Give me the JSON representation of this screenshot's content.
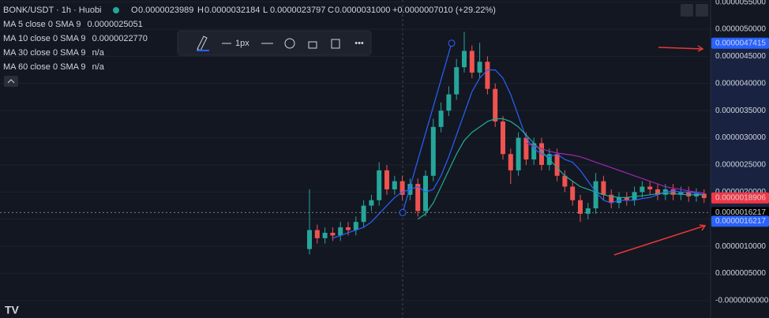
{
  "chart_data": {
    "type": "candlestick",
    "title": "BONK/USDT · 1h · Huobi",
    "ohlc_legend": [
      {
        "label": "O",
        "value": "0.0000023989"
      },
      {
        "label": "H",
        "value": "0.0000032184"
      },
      {
        "label": "L",
        "value": "0.0000023797"
      },
      {
        "label": "C",
        "value": "0.0000031000"
      }
    ],
    "change": "+0.0000007010 (+29.22%)",
    "ma_legend": [
      {
        "name": "MA 5 close 0 SMA 9",
        "value": "0.0000025051",
        "color": "#e040fb"
      },
      {
        "name": "MA 10 close 0 SMA 9",
        "value": "0.0000022770",
        "color": "#2962ff"
      },
      {
        "name": "MA 30 close 0 SMA 9",
        "value": "n/a",
        "color": "#d1d4dc"
      },
      {
        "name": "MA 60 close 0 SMA 9",
        "value": "n/a",
        "color": "#d1d4dc"
      }
    ],
    "toolbar_width": "1px",
    "ylim": [
      -3.2e-07,
      5.538e-06
    ],
    "yticks": [
      {
        "value": 5.5e-06,
        "label": "0.0000055000"
      },
      {
        "value": 5e-06,
        "label": "0.0000050000"
      },
      {
        "value": 4.5e-06,
        "label": "0.0000045000"
      },
      {
        "value": 4e-06,
        "label": "0.0000040000"
      },
      {
        "value": 3.5e-06,
        "label": "0.0000035000"
      },
      {
        "value": 3e-06,
        "label": "0.0000030000"
      },
      {
        "value": 2.5e-06,
        "label": "0.0000025000"
      },
      {
        "value": 2e-06,
        "label": "0.0000020000"
      },
      {
        "value": 1.5e-06,
        "label": "0.0000015000"
      },
      {
        "value": 1e-06,
        "label": "0.0000010000"
      },
      {
        "value": 5e-07,
        "label": "0.0000005000"
      },
      {
        "value": 0,
        "label": "-0.0000000000"
      }
    ],
    "grid": true,
    "up_color": "#26a69a",
    "down_color": "#ef5350",
    "open": [
      9.5e-07,
      1.3e-06,
      1.15e-06,
      1.25e-06,
      1.2e-06,
      1.35e-06,
      1.3e-06,
      1.45e-06,
      1.75e-06,
      1.85e-06,
      2.4e-06,
      2.05e-06,
      2.2e-06,
      1.95e-06,
      2.15e-06,
      1.65e-06,
      2.3e-06,
      3.2e-06,
      3.5e-06,
      3.8e-06,
      4.3e-06,
      4.6e-06,
      4.2e-06,
      4.4e-06,
      3.9e-06,
      3.3e-06,
      2.7e-06,
      2.4e-06,
      3e-06,
      2.6e-06,
      2.9e-06,
      2.5e-06,
      2.7e-06,
      2.3e-06,
      2.1e-06,
      1.85e-06,
      1.6e-06,
      1.7e-06,
      2.2e-06,
      1.95e-06,
      1.8e-06,
      1.9e-06,
      1.85e-06,
      2e-06,
      2.1e-06,
      2.05e-06,
      1.95e-06,
      2.05e-06,
      1.95e-06,
      2e-06,
      1.92e-06,
      1.97e-06
    ],
    "high": [
      2.05e-06,
      1.4e-06,
      1.35e-06,
      1.35e-06,
      1.45e-06,
      1.45e-06,
      1.55e-06,
      1.85e-06,
      1.95e-06,
      2.55e-06,
      2.5e-06,
      2.3e-06,
      2.3e-06,
      2.25e-06,
      2.25e-06,
      2.4e-06,
      3.35e-06,
      3.65e-06,
      3.95e-06,
      4.45e-06,
      4.95e-06,
      4.7e-06,
      4.75e-06,
      4.5e-06,
      4e-06,
      3.4e-06,
      2.8e-06,
      3.1e-06,
      3.1e-06,
      3e-06,
      3e-06,
      2.8e-06,
      2.8e-06,
      2.4e-06,
      2.2e-06,
      1.95e-06,
      1.8e-06,
      2.35e-06,
      2.3e-06,
      2.05e-06,
      2e-06,
      2e-06,
      2.1e-06,
      2.2e-06,
      2.2e-06,
      2.15e-06,
      2.15e-06,
      2.15e-06,
      2.1e-06,
      2.1e-06,
      2.07e-06,
      2.05e-06
    ],
    "low": [
      8.5e-07,
      1.05e-06,
      1.05e-06,
      1.1e-06,
      1.1e-06,
      1.2e-06,
      1.2e-06,
      1.35e-06,
      1.65e-06,
      1.75e-06,
      1.95e-06,
      1.95e-06,
      1.85e-06,
      1.85e-06,
      1.55e-06,
      1.55e-06,
      2.2e-06,
      3.1e-06,
      3.4e-06,
      3.7e-06,
      4.2e-06,
      4.1e-06,
      4.1e-06,
      3.8e-06,
      3.2e-06,
      2.6e-06,
      2.15e-06,
      2.3e-06,
      2.5e-06,
      2.5e-06,
      2.4e-06,
      2.4e-06,
      2.2e-06,
      2e-06,
      1.75e-06,
      1.45e-06,
      1.5e-06,
      1.6e-06,
      1.85e-06,
      1.7e-06,
      1.7e-06,
      1.75e-06,
      1.75e-06,
      1.9e-06,
      1.95e-06,
      1.85e-06,
      1.85e-06,
      1.85e-06,
      1.85e-06,
      1.82e-06,
      1.82e-06,
      1.8e-06
    ],
    "close": [
      1.3e-06,
      1.15e-06,
      1.25e-06,
      1.2e-06,
      1.35e-06,
      1.3e-06,
      1.45e-06,
      1.75e-06,
      1.85e-06,
      2.4e-06,
      2.05e-06,
      2.2e-06,
      1.95e-06,
      2.15e-06,
      1.65e-06,
      2.3e-06,
      3.2e-06,
      3.5e-06,
      3.8e-06,
      4.3e-06,
      4.6e-06,
      4.2e-06,
      4.4e-06,
      3.9e-06,
      3.3e-06,
      2.7e-06,
      2.4e-06,
      3e-06,
      2.6e-06,
      2.9e-06,
      2.5e-06,
      2.7e-06,
      2.3e-06,
      2.1e-06,
      1.85e-06,
      1.6e-06,
      1.7e-06,
      2.2e-06,
      1.95e-06,
      1.8e-06,
      1.9e-06,
      1.85e-06,
      2e-06,
      2.1e-06,
      2.05e-06,
      1.95e-06,
      2.05e-06,
      1.95e-06,
      2e-06,
      1.92e-06,
      1.97e-06,
      1.89e-06
    ],
    "lines": [
      {
        "color": "#2962ff",
        "values": [
          null,
          null,
          null,
          1.15e-06,
          1.2e-06,
          1.25e-06,
          1.3e-06,
          1.35e-06,
          1.45e-06,
          1.6e-06,
          1.75e-06,
          1.9e-06,
          2e-06,
          2.05e-06,
          2.1e-06,
          2e-06,
          2.05e-06,
          2.3e-06,
          2.65e-06,
          3.05e-06,
          3.45e-06,
          3.85e-06,
          4.1e-06,
          4.25e-06,
          4.25e-06,
          4.1e-06,
          3.8e-06,
          3.4e-06,
          3e-06,
          2.8e-06,
          2.7e-06,
          2.65e-06,
          2.7e-06,
          2.6e-06,
          2.55e-06,
          2.4e-06,
          2.2e-06,
          2e-06,
          1.85e-06,
          1.8e-06,
          1.85e-06,
          1.85e-06,
          1.85e-06,
          1.88e-06,
          1.9e-06,
          1.95e-06,
          2e-06,
          2.02e-06,
          2e-06,
          2e-06,
          1.98e-06,
          1.95e-06
        ]
      },
      {
        "color": "#22ab94",
        "values": [
          null,
          null,
          null,
          null,
          null,
          null,
          null,
          null,
          null,
          null,
          null,
          null,
          null,
          null,
          1.5e-06,
          1.6e-06,
          1.8e-06,
          2.1e-06,
          2.4e-06,
          2.7e-06,
          2.95e-06,
          3.1e-06,
          3.2e-06,
          3.3e-06,
          3.35e-06,
          3.35e-06,
          3.3e-06,
          3.2e-06,
          3.05e-06,
          2.9e-06,
          2.75e-06,
          2.6e-06,
          2.45e-06,
          2.3e-06,
          2.2e-06,
          2.1e-06,
          2.05e-06,
          2e-06,
          1.95e-06,
          1.92e-06,
          1.9e-06,
          1.9e-06,
          1.92e-06,
          1.93e-06,
          1.95e-06,
          1.97e-06,
          1.98e-06,
          1.97e-06,
          1.96e-06,
          1.95e-06,
          1.95e-06,
          1.95e-06
        ]
      },
      {
        "color": "#9c27b0",
        "values": [
          null,
          null,
          null,
          null,
          null,
          null,
          null,
          null,
          null,
          null,
          null,
          null,
          null,
          null,
          null,
          null,
          null,
          null,
          null,
          null,
          null,
          null,
          null,
          null,
          null,
          null,
          null,
          null,
          2.9e-06,
          2.85e-06,
          2.8e-06,
          2.75e-06,
          2.72e-06,
          2.7e-06,
          2.68e-06,
          2.65e-06,
          2.6e-06,
          2.55e-06,
          2.5e-06,
          2.45e-06,
          2.4e-06,
          2.35e-06,
          2.3e-06,
          2.25e-06,
          2.2e-06,
          2.15e-06,
          2.1e-06,
          2.07e-06,
          2.05e-06,
          2.02e-06,
          2e-06,
          1.98e-06
        ]
      }
    ],
    "price_labels": [
      {
        "value": 4.7415e-06,
        "label": "0.0000047415",
        "color": "#2962ff"
      },
      {
        "value": 1.8906e-06,
        "label": "0.0000018906",
        "color": "#f23645"
      },
      {
        "value": 1.6217e-06,
        "label": "0.0000016217",
        "color": "#000000"
      },
      {
        "value": 1.6217e-06,
        "label": "0.0000016217",
        "color": "#2962ff"
      }
    ]
  }
}
